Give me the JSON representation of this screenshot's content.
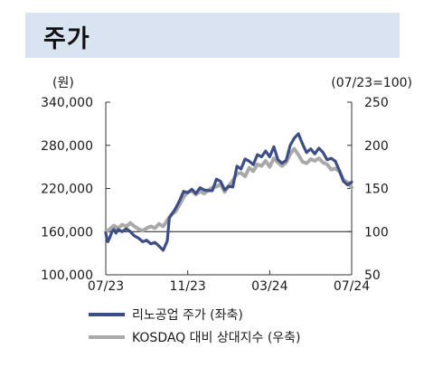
{
  "title": "주가",
  "chart_data": {
    "type": "line",
    "left_axis_unit": "(원)",
    "right_axis_unit": "(07/23=100)",
    "left_axis": {
      "ylim": [
        100000,
        340000
      ],
      "ticks": [
        340000,
        280000,
        220000,
        160000,
        100000
      ],
      "tick_labels": [
        "340,000",
        "280,000",
        "220,000",
        "160,000",
        "100,000"
      ]
    },
    "right_axis": {
      "ylim": [
        50,
        250
      ],
      "ticks": [
        250,
        200,
        150,
        100,
        50
      ],
      "tick_labels": [
        "250",
        "200",
        "150",
        "100",
        "50"
      ]
    },
    "x_tick_labels": [
      "07/23",
      "11/23",
      "03/24",
      "07/24"
    ],
    "reference_line": {
      "axis": "right",
      "value": 100
    },
    "grid": false,
    "legend_position": "bottom",
    "series": [
      {
        "name": "리노공업 주가 (좌축)",
        "axis": "left",
        "color": "#3d4d86",
        "x": [
          0,
          0.05,
          0.1,
          0.2,
          0.3,
          0.4,
          0.5,
          0.6,
          0.8,
          1,
          1.2,
          1.4,
          1.6,
          1.8,
          2,
          2.2,
          2.4,
          2.6,
          2.8,
          3,
          3.1,
          3.2,
          3.4,
          3.6,
          3.8,
          4,
          4.2,
          4.4,
          4.6,
          4.8,
          5,
          5.2,
          5.4,
          5.6,
          5.8,
          6,
          6.2,
          6.4,
          6.6,
          6.8,
          7,
          7.2,
          7.4,
          7.6,
          7.8,
          8,
          8.2,
          8.4,
          8.6,
          8.8,
          9,
          9.2,
          9.4,
          9.6,
          9.8,
          10,
          10.2,
          10.4,
          10.6,
          10.8,
          11,
          11.2,
          11.4,
          11.6,
          11.8,
          12
        ],
        "values": [
          158000,
          151000,
          146000,
          152000,
          160000,
          163000,
          158000,
          163000,
          160000,
          164000,
          160000,
          154000,
          151000,
          146000,
          148000,
          143000,
          145000,
          140000,
          134000,
          147000,
          179000,
          183000,
          192000,
          203000,
          216000,
          214000,
          219000,
          213000,
          221000,
          218000,
          217000,
          217000,
          233000,
          230000,
          218000,
          223000,
          222000,
          251000,
          247000,
          261000,
          258000,
          253000,
          267000,
          264000,
          272000,
          264000,
          278000,
          260000,
          255000,
          259000,
          280000,
          290000,
          296000,
          282000,
          270000,
          275000,
          268000,
          276000,
          270000,
          260000,
          262000,
          258000,
          245000,
          230000,
          225000,
          229000
        ]
      },
      {
        "name": "KOSDAQ 대비 상대지수 (우축)",
        "axis": "right",
        "color": "#a9a9a9",
        "x": [
          0,
          0.2,
          0.4,
          0.6,
          0.8,
          1,
          1.2,
          1.4,
          1.6,
          1.8,
          2,
          2.2,
          2.4,
          2.6,
          2.8,
          3,
          3.2,
          3.4,
          3.6,
          3.8,
          4,
          4.2,
          4.4,
          4.6,
          4.8,
          5,
          5.2,
          5.4,
          5.6,
          5.8,
          6,
          6.2,
          6.4,
          6.6,
          6.8,
          7,
          7.2,
          7.4,
          7.6,
          7.8,
          8,
          8.2,
          8.4,
          8.6,
          8.8,
          9,
          9.2,
          9.4,
          9.6,
          9.8,
          10,
          10.2,
          10.4,
          10.6,
          10.8,
          11,
          11.2,
          11.4,
          11.6,
          11.8,
          12
        ],
        "values": [
          100,
          103,
          107,
          104,
          108,
          106,
          110,
          106,
          103,
          101,
          104,
          106,
          104,
          109,
          106,
          113,
          120,
          123,
          131,
          140,
          146,
          147,
          143,
          147,
          144,
          148,
          151,
          152,
          155,
          146,
          153,
          159,
          167,
          168,
          164,
          174,
          170,
          178,
          176,
          182,
          175,
          185,
          180,
          176,
          180,
          190,
          196,
          189,
          181,
          179,
          184,
          182,
          185,
          180,
          178,
          172,
          173,
          170,
          160,
          157,
          151
        ]
      }
    ]
  }
}
